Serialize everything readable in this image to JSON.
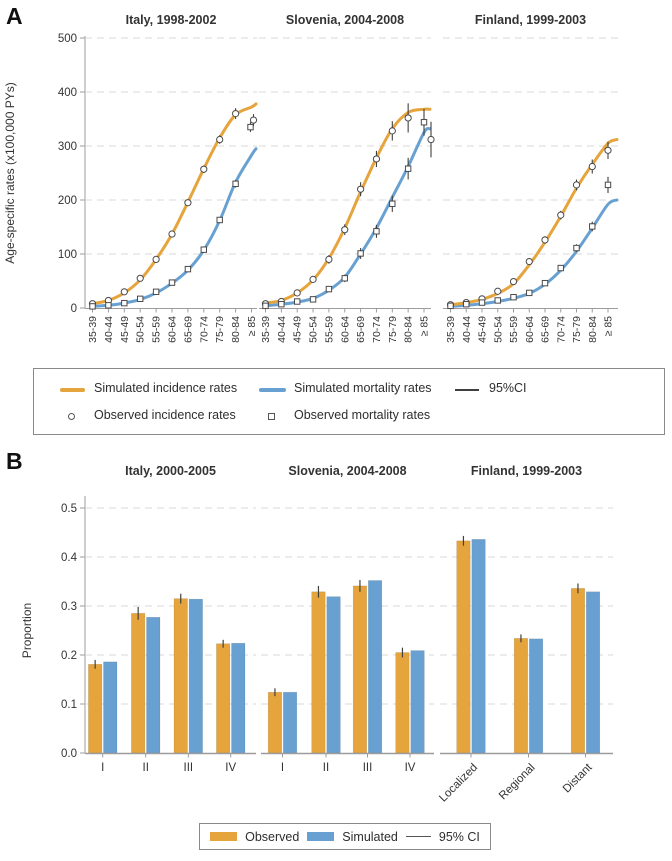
{
  "panel_labels": {
    "a": "A",
    "b": "B"
  },
  "colors": {
    "observed_orange": "#E5A43C",
    "simulated_blue": "#68A1D1",
    "error_bar": "#404040",
    "grid": "#d8d8d8",
    "axis": "#9c9c9c",
    "marker_stroke": "#4a4a4a"
  },
  "chart_data": [
    {
      "panel": "A",
      "type": "line",
      "ylabel": "Age-specific rates (x100,000 PYs)",
      "ylim": [
        0,
        500
      ],
      "ytick_labels": [
        "0",
        "100",
        "200",
        "300",
        "400",
        "500"
      ],
      "x_categories": [
        "35-39",
        "40-44",
        "45-49",
        "50-54",
        "55-59",
        "60-64",
        "65-69",
        "70-74",
        "75-79",
        "80-84",
        "≥ 85"
      ],
      "grid": "dashed-horizontal",
      "legend": [
        "Simulated incidence rates",
        "Simulated mortality rates",
        "95%CI",
        "Observed incidence rates",
        "Observed mortality rates"
      ],
      "subplots": [
        {
          "title": "Italy, 1998-2002",
          "sim_incidence": {
            "values": [
              8,
              14,
              28,
              52,
              90,
              137,
              196,
              258,
              315,
              358,
              372
            ],
            "edge": 378
          },
          "sim_mortality": {
            "values": [
              3,
              5,
              9,
              16,
              28,
              46,
              70,
              107,
              162,
              233,
              283
            ],
            "edge": 295
          },
          "obs_incidence": {
            "values": [
              8,
              14,
              30,
              55,
              90,
              137,
              195,
              257,
              312,
              360,
              348
            ],
            "ci": [
              2,
              2,
              3,
              3,
              4,
              5,
              6,
              7,
              8,
              10,
              11
            ],
            "dx": [
              0,
              0,
              0,
              0,
              0,
              0,
              0,
              0,
              0,
              0,
              2
            ]
          },
          "obs_mortality": {
            "values": [
              3,
              5,
              9,
              17,
              30,
              47,
              72,
              108,
              163,
              230,
              335
            ],
            "ci": [
              1,
              1,
              1,
              2,
              2,
              3,
              3,
              4,
              5,
              7,
              9
            ],
            "dx": [
              0,
              0,
              0,
              0,
              0,
              0,
              0,
              0,
              0,
              0,
              -1
            ]
          }
        },
        {
          "title": "Slovenia, 2004-2008",
          "sim_incidence": {
            "values": [
              9,
              14,
              28,
              52,
              92,
              148,
              215,
              278,
              332,
              362,
              368
            ],
            "edge": 368
          },
          "sim_mortality": {
            "values": [
              4,
              7,
              11,
              18,
              33,
              57,
              100,
              148,
              205,
              262,
              325
            ],
            "edge": 332
          },
          "obs_incidence": {
            "values": [
              8,
              12,
              28,
              53,
              90,
              145,
              220,
              276,
              328,
              352,
              312
            ],
            "ci": [
              2,
              3,
              4,
              6,
              8,
              10,
              13,
              15,
              18,
              27,
              33
            ],
            "dx": [
              0,
              0,
              0,
              0,
              0,
              0,
              0,
              0,
              0,
              0,
              7
            ]
          },
          "obs_mortality": {
            "values": [
              4,
              7,
              12,
              16,
              35,
              55,
              101,
              142,
              193,
              258,
              344
            ],
            "ci": [
              1,
              2,
              2,
              3,
              5,
              7,
              10,
              12,
              15,
              20,
              25
            ],
            "dx": [
              0,
              0,
              0,
              0,
              0,
              0,
              0,
              0,
              0,
              0,
              0
            ]
          }
        },
        {
          "title": "Finland, 1999-2003",
          "sim_incidence": {
            "values": [
              6,
              10,
              16,
              27,
              45,
              80,
              122,
              170,
              222,
              266,
              305
            ],
            "edge": 312
          },
          "sim_mortality": {
            "values": [
              3,
              5,
              8,
              12,
              18,
              27,
              44,
              70,
              105,
              148,
              192
            ],
            "edge": 200
          },
          "obs_incidence": {
            "values": [
              6,
              10,
              17,
              31,
              49,
              86,
              126,
              172,
              228,
              262,
              292
            ],
            "ci": [
              1,
              2,
              2,
              3,
              4,
              5,
              7,
              8,
              10,
              13,
              16
            ],
            "dx": [
              0,
              0,
              0,
              0,
              0,
              0,
              0,
              0,
              0,
              0,
              0
            ]
          },
          "obs_mortality": {
            "values": [
              4,
              7,
              10,
              14,
              20,
              28,
              46,
              74,
              111,
              151,
              228
            ],
            "ci": [
              1,
              1,
              1,
              2,
              2,
              3,
              4,
              5,
              7,
              9,
              15
            ],
            "dx": [
              0,
              0,
              0,
              0,
              0,
              0,
              0,
              0,
              0,
              0,
              0
            ]
          }
        }
      ]
    },
    {
      "panel": "B",
      "type": "bar",
      "ylabel": "Proportion",
      "ylim": [
        0,
        0.5
      ],
      "ytick_labels": [
        "0.0",
        "0.1",
        "0.2",
        "0.3",
        "0.4",
        "0.5"
      ],
      "grid": "dashed-horizontal",
      "legend": [
        "Observed",
        "Simulated",
        "95% CI"
      ],
      "subplots": [
        {
          "title": "Italy, 2000-2005",
          "categories": [
            "I",
            "II",
            "III",
            "IV"
          ],
          "rotated_labels": false,
          "observed": {
            "values": [
              0.181,
              0.285,
              0.315,
              0.223
            ],
            "ci": [
              0.009,
              0.013,
              0.01,
              0.008
            ]
          },
          "simulated": {
            "values": [
              0.186,
              0.277,
              0.314,
              0.224
            ]
          }
        },
        {
          "title": "Slovenia, 2004-2008",
          "categories": [
            "I",
            "II",
            "III",
            "IV"
          ],
          "rotated_labels": false,
          "observed": {
            "values": [
              0.124,
              0.329,
              0.341,
              0.205
            ],
            "ci": [
              0.008,
              0.012,
              0.012,
              0.01
            ]
          },
          "simulated": {
            "values": [
              0.124,
              0.319,
              0.352,
              0.209
            ]
          }
        },
        {
          "title": "Finland, 1999-2003",
          "categories": [
            "Localized",
            "Regional",
            "Distant"
          ],
          "rotated_labels": true,
          "observed": {
            "values": [
              0.433,
              0.234,
              0.336
            ],
            "ci": [
              0.01,
              0.008,
              0.01
            ]
          },
          "simulated": {
            "values": [
              0.436,
              0.233,
              0.329
            ]
          }
        }
      ]
    }
  ]
}
